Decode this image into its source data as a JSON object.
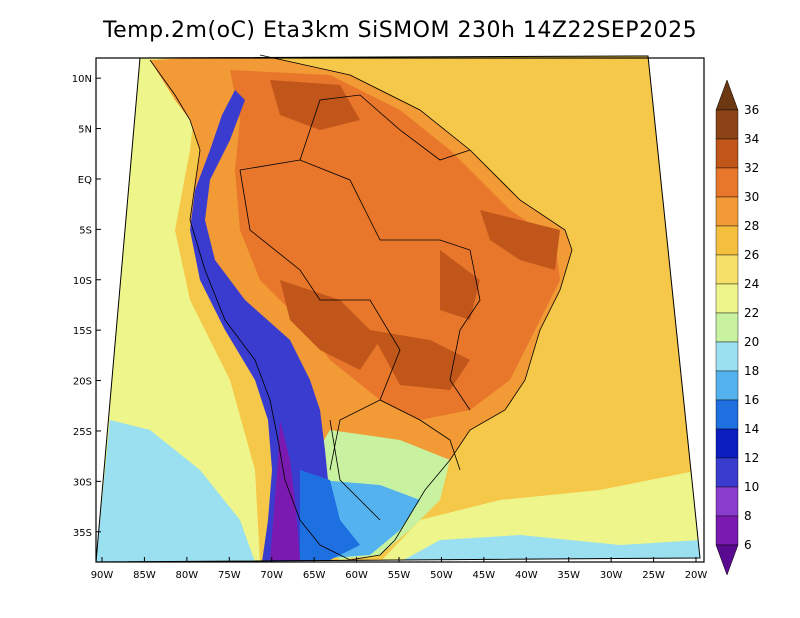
{
  "title": "Temp.2m(oC) Eta3km SiSMOM 230h 14Z22SEP2025",
  "map": {
    "lat_labels": [
      "10N",
      "5N",
      "EQ",
      "5S",
      "10S",
      "15S",
      "20S",
      "25S",
      "30S",
      "35S"
    ],
    "lon_labels": [
      "90W",
      "85W",
      "80W",
      "75W",
      "70W",
      "65W",
      "60W",
      "55W",
      "50W",
      "45W",
      "40W",
      "35W",
      "30W",
      "25W",
      "20W"
    ],
    "lat_range": [
      12,
      -38
    ],
    "lon_range": [
      -90,
      -20
    ]
  },
  "colorbar": {
    "unit": "oC",
    "levels": [
      "36",
      "34",
      "32",
      "30",
      "28",
      "26",
      "24",
      "22",
      "20",
      "18",
      "16",
      "14",
      "12",
      "10",
      "8",
      "6"
    ],
    "colors": {
      "above": "#6b3812",
      "c34_36": "#8c4416",
      "c32_34": "#c0561a",
      "c30_32": "#e8772b",
      "c28_30": "#f29a35",
      "c26_28": "#f5bf3e",
      "c24_26": "#f7e06a",
      "c22_24": "#eef58b",
      "c20_22": "#c8f2a0",
      "c18_20": "#9be0f0",
      "c16_18": "#54b3ee",
      "c14_16": "#1e6fe0",
      "c12_14": "#0a1ec0",
      "c10_12": "#3a3cd0",
      "c8_10": "#8a3ccc",
      "c6_8": "#7a1ab0",
      "below": "#5a0a90"
    }
  },
  "field_colors": {
    "ocean_warm": "#f5c84a",
    "ocean_mild": "#f7e06a",
    "ocean_cool": "#eef58b",
    "ocean_cold": "#c8f2a0",
    "ocean_colder": "#9be0f0",
    "land_hot": "#e8772b",
    "land_very_hot": "#c0561a",
    "land_warm": "#f29a35",
    "andes_cold": "#3a3cd0",
    "andes_coldest": "#7a1ab0",
    "patagonia": "#1e6fe0",
    "south_plain": "#54b3ee"
  }
}
